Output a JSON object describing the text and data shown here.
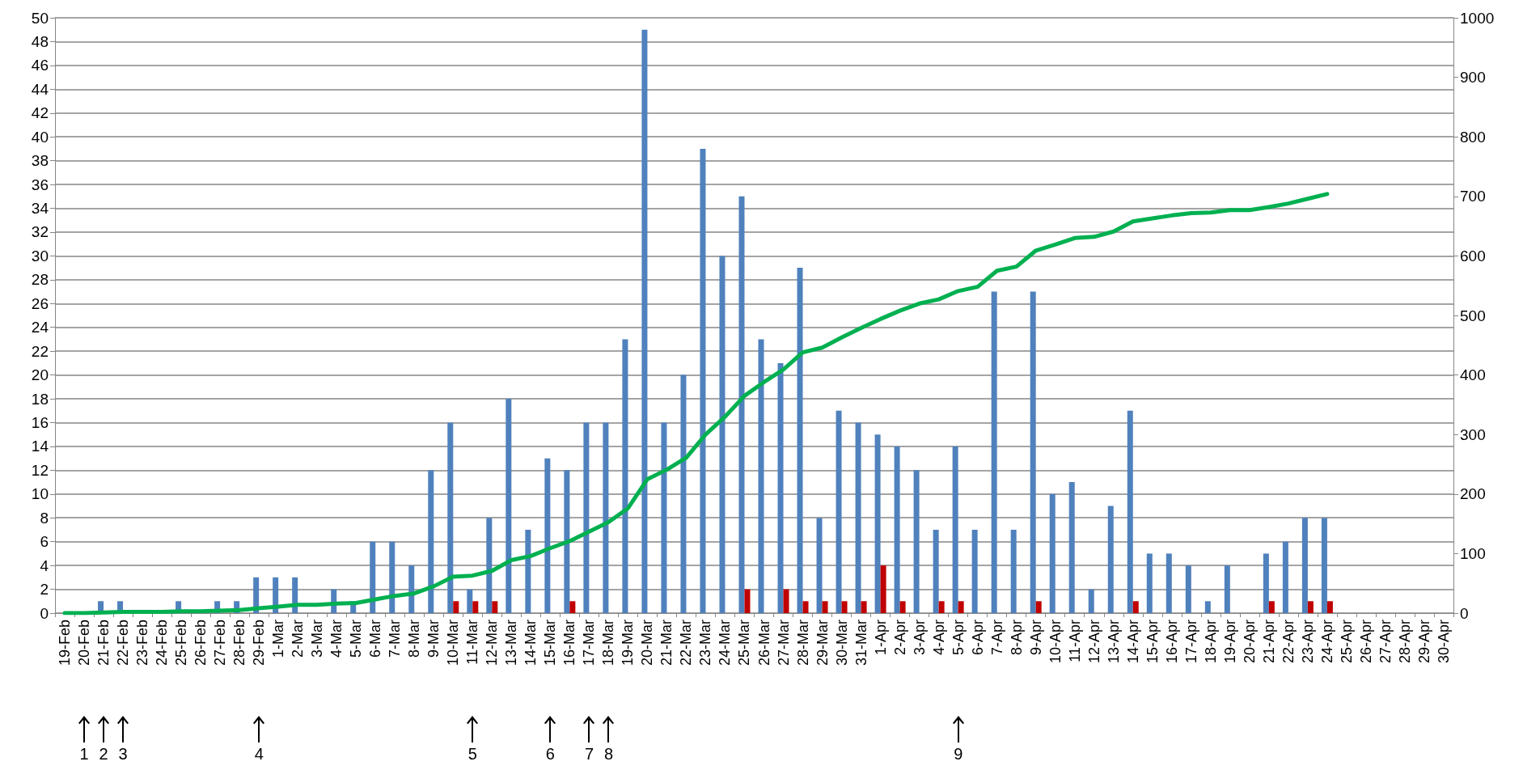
{
  "chart_data": {
    "type": "bar",
    "categories": [
      "19-Feb",
      "20-Feb",
      "21-Feb",
      "22-Feb",
      "23-Feb",
      "24-Feb",
      "25-Feb",
      "26-Feb",
      "27-Feb",
      "28-Feb",
      "29-Feb",
      "1-Mar",
      "2-Mar",
      "3-Mar",
      "4-Mar",
      "5-Mar",
      "6-Mar",
      "7-Mar",
      "8-Mar",
      "9-Mar",
      "10-Mar",
      "11-Mar",
      "12-Mar",
      "13-Mar",
      "14-Mar",
      "15-Mar",
      "16-Mar",
      "17-Mar",
      "18-Mar",
      "19-Mar",
      "20-Mar",
      "21-Mar",
      "22-Mar",
      "23-Mar",
      "24-Mar",
      "25-Mar",
      "26-Mar",
      "27-Mar",
      "28-Mar",
      "29-Mar",
      "30-Mar",
      "31-Mar",
      "1-Apr",
      "2-Apr",
      "3-Apr",
      "4-Apr",
      "5-Apr",
      "6-Apr",
      "7-Apr",
      "8-Apr",
      "9-Apr",
      "10-Apr",
      "11-Apr",
      "12-Apr",
      "13-Apr",
      "14-Apr",
      "15-Apr",
      "16-Apr",
      "17-Apr",
      "18-Apr",
      "19-Apr",
      "20-Apr",
      "21-Apr",
      "22-Apr",
      "23-Apr",
      "24-Apr",
      "25-Apr",
      "26-Apr",
      "27-Apr",
      "28-Apr",
      "29-Apr",
      "30-Apr"
    ],
    "series": [
      {
        "color": "#4f81bd",
        "values": [
          0,
          0,
          1,
          1,
          0,
          0,
          1,
          0,
          1,
          1,
          3,
          3,
          3,
          0,
          2,
          1,
          6,
          6,
          4,
          12,
          16,
          2,
          8,
          18,
          7,
          13,
          12,
          16,
          16,
          23,
          49,
          16,
          20,
          39,
          30,
          35,
          23,
          21,
          29,
          8,
          17,
          16,
          15,
          14,
          12,
          7,
          14,
          7,
          27,
          7,
          27,
          10,
          11,
          2,
          9,
          17,
          5,
          5,
          4,
          1,
          4,
          0,
          5,
          6,
          8,
          8,
          0,
          0,
          0,
          0,
          0,
          0
        ]
      },
      {
        "color": "#c00000",
        "values": [
          null,
          null,
          null,
          null,
          null,
          null,
          null,
          null,
          null,
          null,
          null,
          null,
          null,
          null,
          null,
          null,
          null,
          null,
          null,
          null,
          1,
          1,
          1,
          null,
          null,
          null,
          1,
          null,
          null,
          null,
          null,
          null,
          null,
          null,
          null,
          2,
          null,
          2,
          1,
          1,
          1,
          1,
          4,
          1,
          null,
          1,
          1,
          null,
          null,
          null,
          1,
          null,
          null,
          null,
          null,
          1,
          null,
          null,
          null,
          null,
          null,
          null,
          1,
          null,
          1,
          1,
          null,
          null,
          null,
          null,
          null,
          null
        ]
      },
      {
        "type": "line",
        "axis": "y2",
        "color": "#00b050",
        "values": [
          0,
          0,
          1,
          2,
          2,
          2,
          3,
          3,
          4,
          5,
          8,
          11,
          14,
          14,
          16,
          17,
          23,
          29,
          33,
          45,
          61,
          63,
          71,
          89,
          96,
          109,
          121,
          137,
          153,
          176,
          225,
          241,
          261,
          300,
          330,
          365,
          388,
          409,
          438,
          446,
          463,
          479,
          494,
          508,
          520,
          527,
          541,
          548,
          575,
          582,
          609,
          619,
          630,
          632,
          641,
          658,
          663,
          668,
          672,
          673,
          677,
          677,
          682,
          688,
          696,
          704,
          null,
          null,
          null,
          null,
          null,
          null
        ]
      }
    ],
    "ylim": [
      0,
      50
    ],
    "yticks": [
      0,
      2,
      4,
      6,
      8,
      10,
      12,
      14,
      16,
      18,
      20,
      22,
      24,
      26,
      28,
      30,
      32,
      34,
      36,
      38,
      40,
      42,
      44,
      46,
      48,
      50
    ],
    "y2lim": [
      0,
      1000
    ],
    "y2ticks": [
      0,
      100,
      200,
      300,
      400,
      500,
      600,
      700,
      800,
      900,
      1000
    ],
    "grid": "y",
    "marker": "none",
    "line_style": "solid",
    "annotations": [
      "1",
      "2",
      "3",
      "4",
      "5",
      "6",
      "7",
      "8",
      "9"
    ]
  }
}
